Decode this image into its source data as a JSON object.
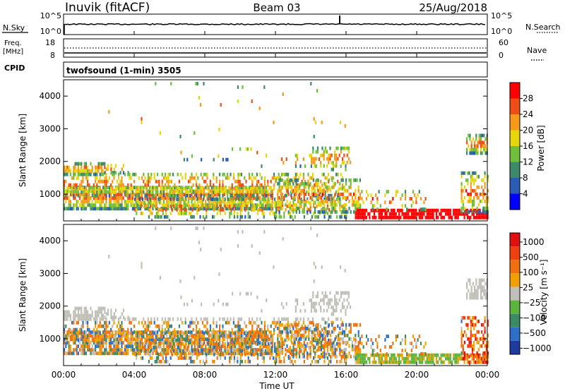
{
  "header": {
    "station": "Inuvik (fitACF)",
    "beam": "Beam 03",
    "date": "25/Aug/2018"
  },
  "nsky_panel": {
    "left_label": "N.Sky",
    "right_label": "N.Search",
    "left_ticks": [
      "10^5",
      "10^0"
    ],
    "right_ticks": [
      "10^5",
      "10^0"
    ]
  },
  "freq_panel": {
    "left_label_1": "Freq.",
    "left_label_2": "[MHz]",
    "right_label": "Nave",
    "left_ticks": [
      "18",
      "8"
    ],
    "right_ticks": [
      "60",
      "0"
    ]
  },
  "cpid": {
    "label": "CPID",
    "value": "twofsound (1-min) 3505"
  },
  "chart_data": [
    {
      "type": "heatmap",
      "name": "power",
      "ylabel": "Slant Range [km]",
      "ylim": [
        180,
        4500
      ],
      "yticks": [
        1000,
        2000,
        3000,
        4000
      ],
      "xlim_hours": [
        0,
        24
      ],
      "colorbar": {
        "label": "Power [dB]",
        "ticks": [
          "4",
          "8",
          "12",
          "16",
          "20",
          "24",
          "28"
        ],
        "colors": [
          "#0000ff",
          "#2a5cb4",
          "#3d8a6a",
          "#6fbf3a",
          "#e8d60c",
          "#f59a1a",
          "#ee4e16",
          "#ff0000"
        ]
      }
    },
    {
      "type": "heatmap",
      "name": "velocity",
      "ylabel": "Slant Range [km]",
      "ylim": [
        180,
        4500
      ],
      "yticks": [
        1000,
        2000,
        3000,
        4000
      ],
      "xlim_hours": [
        0,
        24
      ],
      "xticks": [
        "00:00",
        "04:00",
        "08:00",
        "12:00",
        "16:00",
        "20:00",
        "00:00"
      ],
      "xlabel": "Time UT",
      "colorbar": {
        "label": "Velocity [m s⁻¹]",
        "ticks": [
          "1000",
          "500",
          "100",
          "25",
          "−25",
          "−100",
          "−500",
          "−1000"
        ],
        "colors": [
          "#1e3ca0",
          "#2d6ec8",
          "#3a8a64",
          "#5cb43c",
          "#c0c0b8",
          "#f0a000",
          "#f07010",
          "#f04010",
          "#e01010"
        ]
      }
    }
  ]
}
